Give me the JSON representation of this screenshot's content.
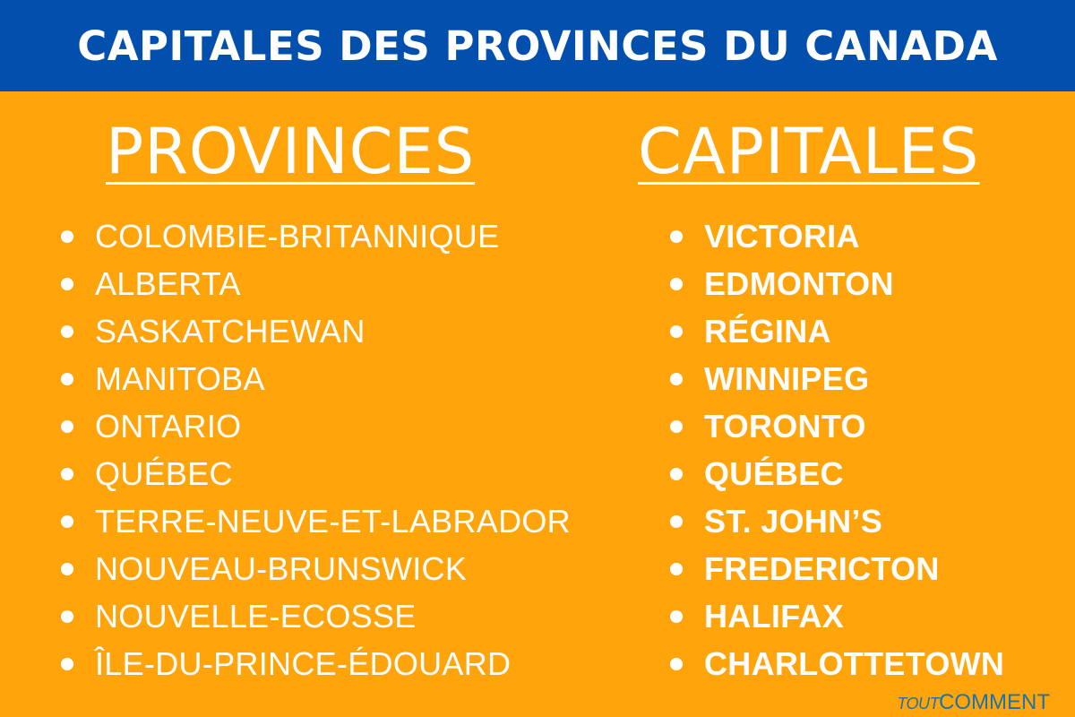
{
  "title": "CAPITALES DES PROVINCES DU CANADA",
  "columns": {
    "left_heading": "PROVINCES",
    "right_heading": "CAPITALES"
  },
  "provinces": [
    "COLOMBIE-BRITANNIQUE",
    "ALBERTA",
    "SASKATCHEWAN",
    "MANITOBA",
    "ONTARIO",
    "QUÉBEC",
    "TERRE-NEUVE-ET-LABRADOR",
    "NOUVEAU-BRUNSWICK",
    "NOUVELLE-ECOSSE",
    "ÎLE-DU-PRINCE-ÉDOUARD"
  ],
  "capitals": [
    "VICTORIA",
    "EDMONTON",
    "RÉGINA",
    "WINNIPEG",
    "TORONTO",
    "QUÉBEC",
    "ST. JOHN’S",
    "FREDERICTON",
    "HALIFAX",
    "CHARLOTTETOWN"
  ],
  "logo": {
    "part1": "TOUT",
    "part2": "COMMENT"
  },
  "colors": {
    "header_bg": "#024FAD",
    "background": "#FFA40B",
    "text": "#FFFFFF",
    "logo": "#1D74A8"
  }
}
